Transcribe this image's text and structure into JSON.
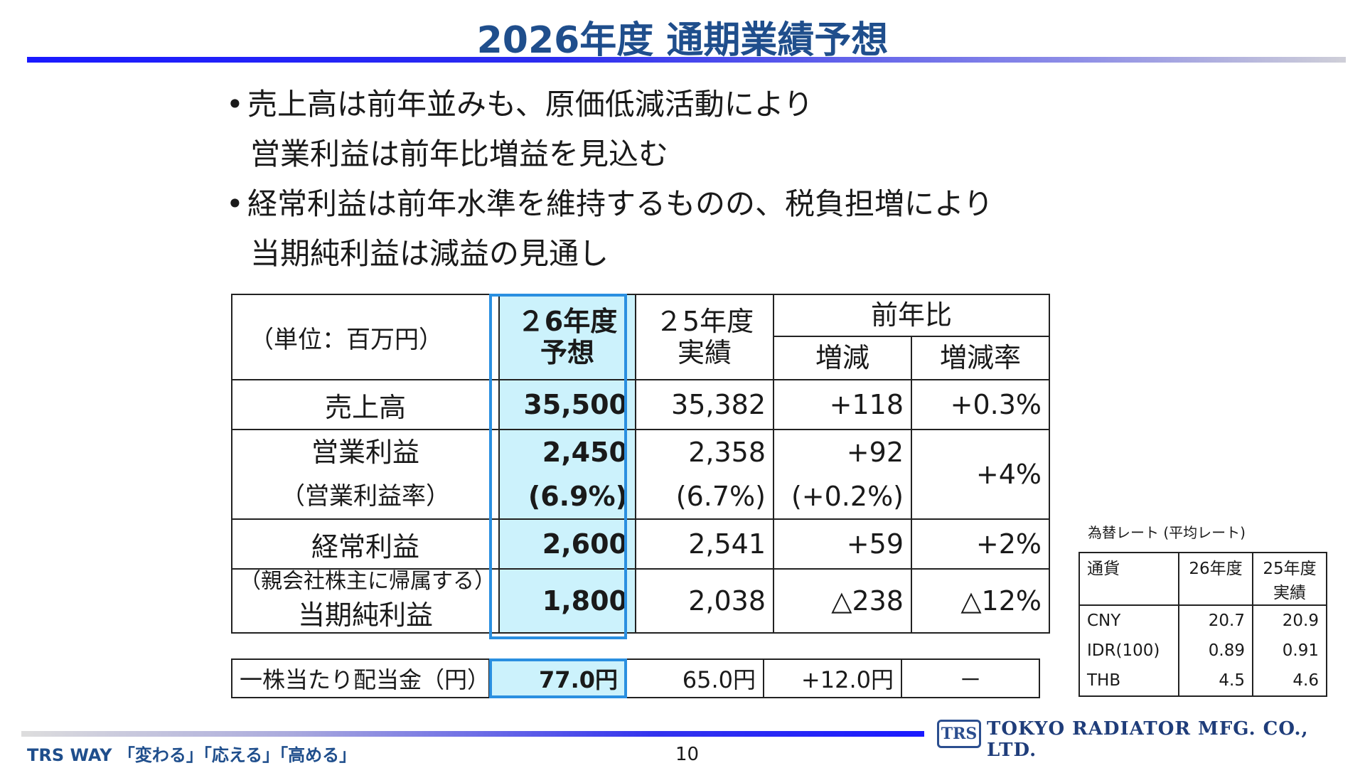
{
  "title": "2026年度 通期業績予想",
  "bullets": [
    {
      "line1": "売上高は前年並みも、原価低減活動により",
      "line2": "営業利益は前年比増益を見込む"
    },
    {
      "line1": "経常利益は前年水準を維持するものの、税負担増により",
      "line2": "当期純利益は減益の見通し"
    }
  ],
  "table": {
    "unit": "（単位：百万円）",
    "col_fy26": "２6年度\n予想",
    "col_fy26_l1": "２6年度",
    "col_fy26_l2": "予想",
    "col_fy25_l1": "２5年度",
    "col_fy25_l2": "実績",
    "col_yoy": "前年比",
    "col_diff": "増減",
    "col_rate": "増減率",
    "rows": {
      "sales": {
        "label": "売上高",
        "fy26": "35,500",
        "fy25": "35,382",
        "diff": "+118",
        "rate": "+0.3%"
      },
      "op": {
        "label": "営業利益",
        "fy26": "2,450",
        "fy25": "2,358",
        "diff": "+92",
        "rate": "+4%"
      },
      "op_margin": {
        "label": "（営業利益率）",
        "fy26": "(6.9%)",
        "fy25": "(6.7%)",
        "diff": "(+0.2%)"
      },
      "ordinary": {
        "label": "経常利益",
        "fy26": "2,600",
        "fy25": "2,541",
        "diff": "+59",
        "rate": "+2%"
      },
      "net": {
        "label_small": "（親会社株主に帰属する）",
        "label": "当期純利益",
        "fy26": "1,800",
        "fy25": "2,038",
        "diff": "△238",
        "rate": "△12%"
      }
    }
  },
  "dividend": {
    "label": "一株当たり配当金（円）",
    "fy26": "77.0円",
    "fy25": "65.0円",
    "diff": "+12.0円",
    "rate": "－"
  },
  "fx": {
    "caption": "為替レート (平均レート)",
    "head_currency": "通貨",
    "head_fy26": "26年度",
    "head_fy25_l1": "25年度",
    "head_fy25_l2": "実績",
    "rows": [
      {
        "currency": "CNY",
        "fy26": "20.7",
        "fy25": "20.9"
      },
      {
        "currency": "IDR(100)",
        "fy26": "0.89",
        "fy25": "0.91"
      },
      {
        "currency": "THB",
        "fy26": "4.5",
        "fy25": "4.6"
      }
    ]
  },
  "footer": {
    "trs_way": "TRS WAY 「変わる」「応える」「高める」",
    "page": "10",
    "logo": "TRS",
    "company": "TOKYO RADIATOR MFG. CO., LTD."
  }
}
